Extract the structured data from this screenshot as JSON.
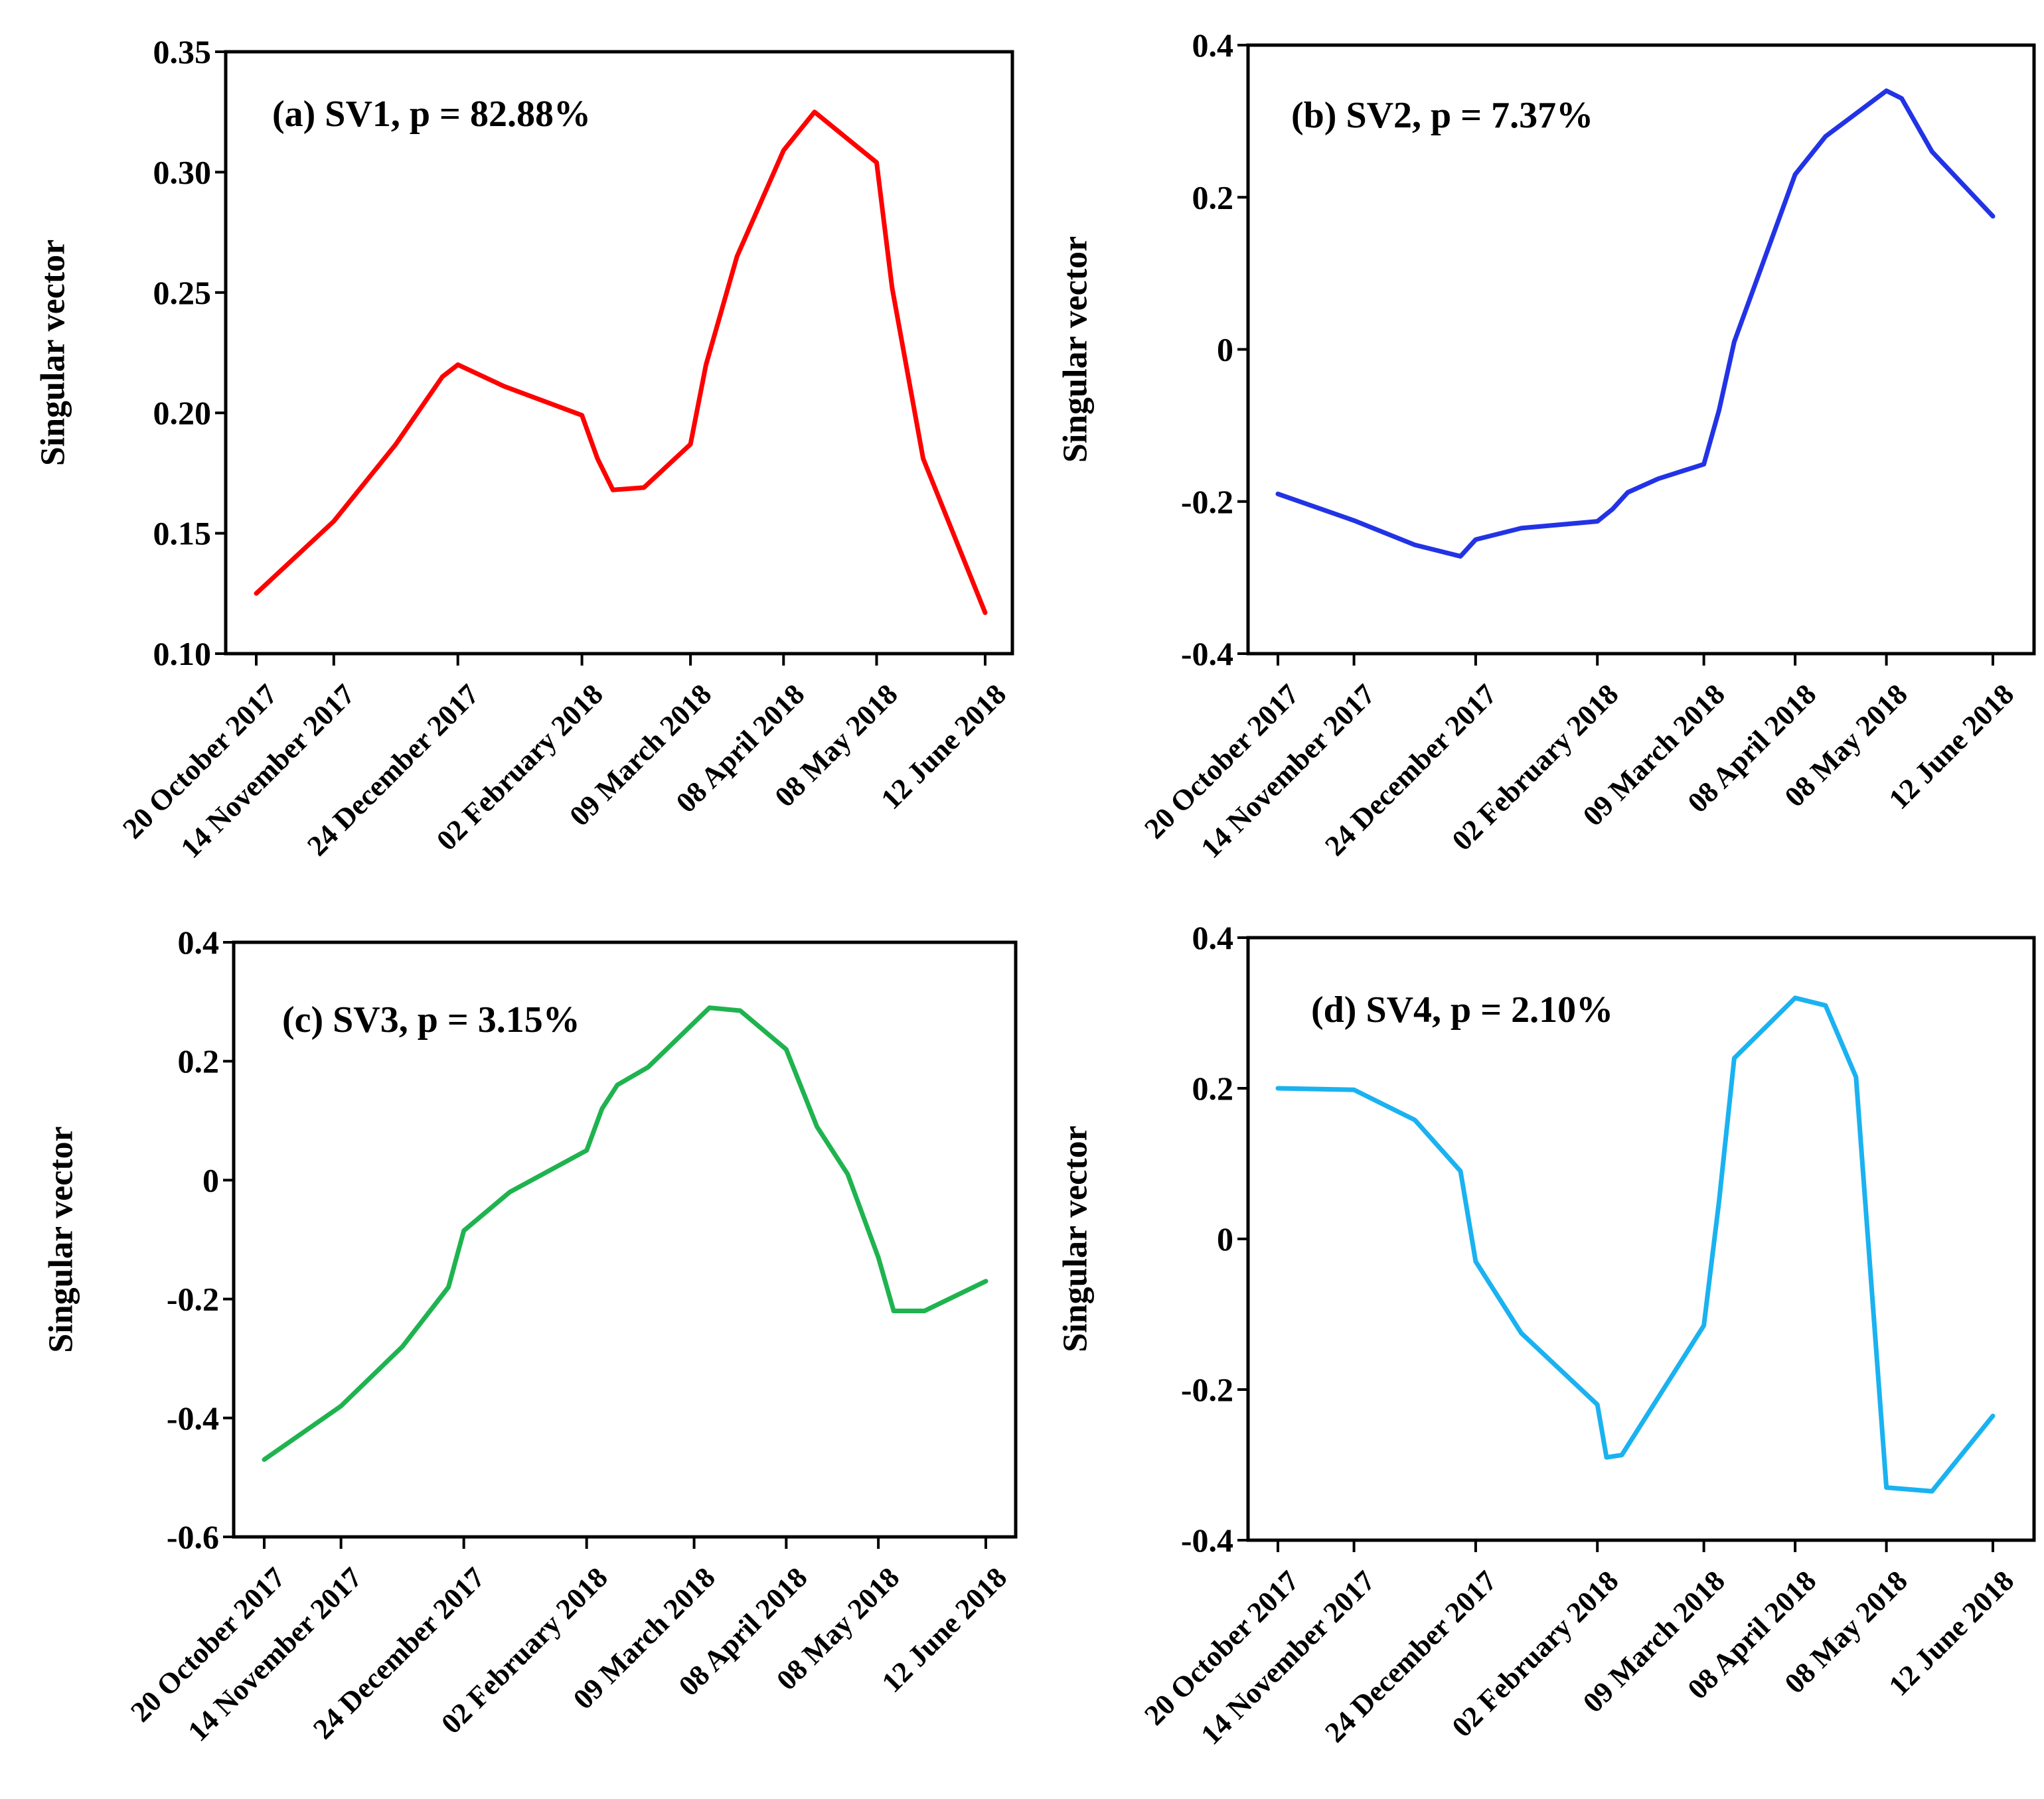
{
  "chart_data": [
    {
      "type": "line",
      "annotation": "(a) SV1, p = 82.88%",
      "ylabel": "Singular vector",
      "xlabel": "",
      "color": "#ff0000",
      "ylim": [
        0.1,
        0.35
      ],
      "yticks": [
        0.1,
        0.15,
        0.2,
        0.25,
        0.3,
        0.35
      ],
      "ytick_labels": [
        "0.10",
        "0.15",
        "0.20",
        "0.25",
        "0.30",
        "0.35"
      ],
      "xlim": [
        0,
        235
      ],
      "xticks": [
        0,
        25,
        65,
        105,
        140,
        170,
        200,
        235
      ],
      "xtick_labels": [
        "20 October 2017",
        "14 November 2017",
        "24 December 2017",
        "02 February 2018",
        "09 March 2018",
        "08 April 2018",
        "08 May 2018",
        "12 June 2018"
      ],
      "x": [
        0,
        25,
        45,
        60,
        65,
        80,
        105,
        110,
        115,
        125,
        140,
        145,
        155,
        170,
        180,
        200,
        205,
        215,
        235
      ],
      "y": [
        0.125,
        0.155,
        0.187,
        0.215,
        0.22,
        0.211,
        0.199,
        0.181,
        0.168,
        0.169,
        0.187,
        0.22,
        0.265,
        0.309,
        0.325,
        0.304,
        0.252,
        0.181,
        0.117
      ]
    },
    {
      "type": "line",
      "annotation": "(b) SV2, p = 7.37%",
      "ylabel": "Singular vector",
      "xlabel": "",
      "color": "#2233e6",
      "ylim": [
        -0.4,
        0.4
      ],
      "yticks": [
        -0.4,
        -0.2,
        0,
        0.2,
        0.4
      ],
      "ytick_labels": [
        "-0.4",
        "-0.2",
        "0",
        "0.2",
        "0.4"
      ],
      "xlim": [
        0,
        235
      ],
      "xticks": [
        0,
        25,
        65,
        105,
        140,
        170,
        200,
        235
      ],
      "xtick_labels": [
        "20 October 2017",
        "14 November 2017",
        "24 December 2017",
        "02 February 2018",
        "09 March 2018",
        "08 April 2018",
        "08 May 2018",
        "12 June 2018"
      ],
      "x": [
        0,
        25,
        45,
        60,
        65,
        80,
        105,
        110,
        115,
        125,
        140,
        145,
        150,
        160,
        170,
        180,
        200,
        205,
        215,
        235
      ],
      "y": [
        -0.19,
        -0.225,
        -0.257,
        -0.272,
        -0.25,
        -0.235,
        -0.226,
        -0.21,
        -0.188,
        -0.17,
        -0.151,
        -0.08,
        0.01,
        0.12,
        0.23,
        0.28,
        0.34,
        0.33,
        0.26,
        0.175
      ]
    },
    {
      "type": "line",
      "annotation": "(c) SV3, p  = 3.15%",
      "ylabel": "Singular vector",
      "xlabel": "",
      "color": "#1fb34f",
      "ylim": [
        -0.6,
        0.4
      ],
      "yticks": [
        -0.6,
        -0.4,
        -0.2,
        0,
        0.2,
        0.4
      ],
      "ytick_labels": [
        "-0.6",
        "-0.4",
        "-0.2",
        "0",
        "0.2",
        "0.4"
      ],
      "xlim": [
        0,
        235
      ],
      "xticks": [
        0,
        25,
        65,
        105,
        140,
        170,
        200,
        235
      ],
      "xtick_labels": [
        "20 October 2017",
        "14 November 2017",
        "24 December 2017",
        "02 February 2018",
        "09 March 2018",
        "08 April 2018",
        "08 May 2018",
        "12 June 2018"
      ],
      "x": [
        0,
        25,
        45,
        60,
        65,
        80,
        105,
        110,
        115,
        125,
        145,
        155,
        170,
        180,
        190,
        200,
        205,
        215,
        235
      ],
      "y": [
        -0.47,
        -0.38,
        -0.28,
        -0.18,
        -0.085,
        -0.02,
        0.05,
        0.12,
        0.16,
        0.19,
        0.29,
        0.285,
        0.22,
        0.09,
        0.01,
        -0.13,
        -0.22,
        -0.22,
        -0.17
      ]
    },
    {
      "type": "line",
      "annotation": "(d) SV4, p = 2.10%",
      "ylabel": "Singular vector",
      "xlabel": "",
      "color": "#1ab2f0",
      "ylim": [
        -0.4,
        0.4
      ],
      "yticks": [
        -0.4,
        -0.2,
        0,
        0.2,
        0.4
      ],
      "ytick_labels": [
        "-0.4",
        "-0.2",
        "0",
        "0.2",
        "0.4"
      ],
      "xlim": [
        0,
        235
      ],
      "xticks": [
        0,
        25,
        65,
        105,
        140,
        170,
        200,
        235
      ],
      "xtick_labels": [
        "20 October 2017",
        "14 November 2017",
        "24 December 2017",
        "02 February 2018",
        "09 March 2018",
        "08 April 2018",
        "08 May 2018",
        "12 June 2018"
      ],
      "x": [
        0,
        25,
        45,
        60,
        65,
        80,
        105,
        108,
        113,
        140,
        145,
        150,
        170,
        180,
        190,
        200,
        215,
        235
      ],
      "y": [
        0.2,
        0.198,
        0.158,
        0.09,
        -0.03,
        -0.125,
        -0.22,
        -0.29,
        -0.287,
        -0.115,
        0.05,
        0.24,
        0.32,
        0.31,
        0.215,
        -0.33,
        -0.335,
        -0.235
      ]
    }
  ]
}
